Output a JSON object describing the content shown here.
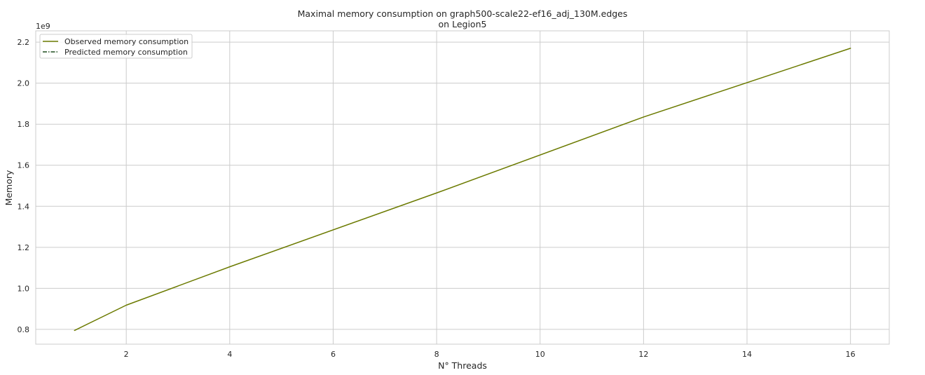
{
  "chart_data": {
    "type": "line",
    "title": "Maximal memory consumption on graph500-scale22-ef16_adj_130M.edges",
    "subtitle": "on Legion5",
    "xlabel": "N° Threads",
    "ylabel": "Memory",
    "y_offset_label": "1e9",
    "y_scale_factor": 1000000000,
    "xlim": [
      0.25,
      16.75
    ],
    "ylim": [
      0.728,
      2.255
    ],
    "x_ticks": [
      2,
      4,
      6,
      8,
      10,
      12,
      14,
      16
    ],
    "y_ticks": [
      0.8,
      1.0,
      1.2,
      1.4,
      1.6,
      1.8,
      2.0,
      2.2
    ],
    "x_tick_labels": [
      "2",
      "4",
      "6",
      "8",
      "10",
      "12",
      "14",
      "16"
    ],
    "y_tick_labels": [
      "0.8",
      "1.0",
      "1.2",
      "1.4",
      "1.6",
      "1.8",
      "2.0",
      "2.2"
    ],
    "grid": true,
    "legend_position": "top-left",
    "series": [
      {
        "name": "Observed memory consumption",
        "color": "#6b7a00",
        "style": "solid",
        "x": [
          1,
          2,
          4,
          8,
          12,
          16
        ],
        "y": [
          0.795,
          0.918,
          1.105,
          1.465,
          1.835,
          2.17
        ]
      },
      {
        "name": "Predicted memory consumption",
        "color": "#1f4d1f",
        "style": "dashdot",
        "x": [],
        "y": []
      }
    ]
  }
}
